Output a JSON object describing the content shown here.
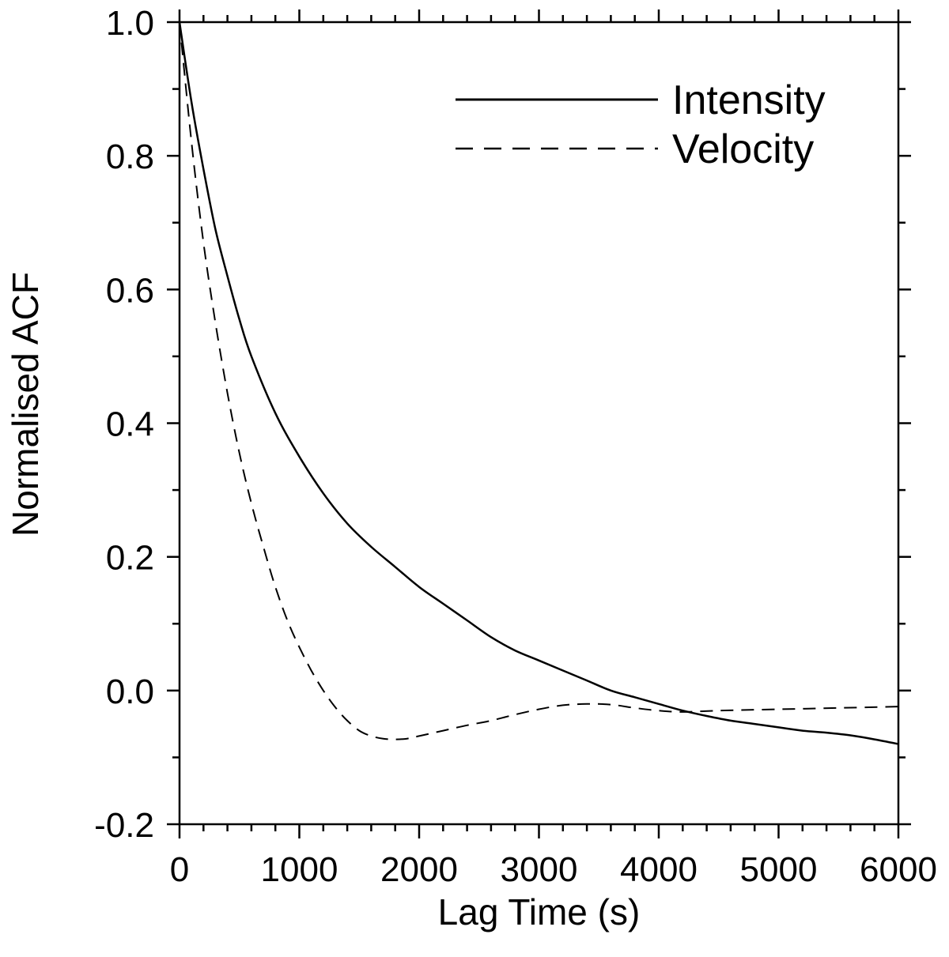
{
  "chart_data": {
    "type": "line",
    "xlabel": "Lag Time (s)",
    "ylabel": "Normalised ACF",
    "xlim": [
      0,
      6000
    ],
    "ylim": [
      -0.2,
      1.0
    ],
    "x_ticks": [
      0,
      1000,
      2000,
      3000,
      4000,
      5000,
      6000
    ],
    "x_tick_labels": [
      "0",
      "1000",
      "2000",
      "3000",
      "4000",
      "5000",
      "6000"
    ],
    "y_ticks": [
      -0.2,
      0.0,
      0.2,
      0.4,
      0.6,
      0.8,
      1.0
    ],
    "y_tick_labels": [
      "-0.2",
      "0.0",
      "0.2",
      "0.4",
      "0.6",
      "0.8",
      "1.0"
    ],
    "x_minor_step": 200,
    "y_minor_step": 0.1,
    "grid": false,
    "legend_position": "top-right",
    "series": [
      {
        "name": "Intensity",
        "style": "solid",
        "color": "#000000",
        "x": [
          0,
          100,
          200,
          300,
          400,
          500,
          600,
          800,
          1000,
          1200,
          1400,
          1600,
          1800,
          2000,
          2200,
          2400,
          2600,
          2800,
          3000,
          3200,
          3400,
          3600,
          3800,
          4000,
          4200,
          4400,
          4600,
          4800,
          5000,
          5200,
          5400,
          5600,
          5800,
          6000
        ],
        "y": [
          1.0,
          0.88,
          0.78,
          0.69,
          0.62,
          0.555,
          0.5,
          0.415,
          0.35,
          0.295,
          0.25,
          0.215,
          0.185,
          0.155,
          0.13,
          0.105,
          0.08,
          0.06,
          0.045,
          0.03,
          0.015,
          0.0,
          -0.01,
          -0.02,
          -0.03,
          -0.038,
          -0.045,
          -0.05,
          -0.055,
          -0.06,
          -0.063,
          -0.067,
          -0.073,
          -0.08
        ]
      },
      {
        "name": "Velocity",
        "style": "dashed",
        "color": "#000000",
        "x": [
          0,
          100,
          200,
          300,
          400,
          500,
          600,
          700,
          800,
          900,
          1000,
          1100,
          1200,
          1300,
          1400,
          1500,
          1600,
          1700,
          1800,
          1900,
          2000,
          2200,
          2400,
          2600,
          2800,
          3000,
          3200,
          3400,
          3600,
          3800,
          4000,
          4200,
          4500,
          5000,
          5500,
          6000
        ],
        "y": [
          1.0,
          0.82,
          0.67,
          0.55,
          0.445,
          0.355,
          0.28,
          0.215,
          0.155,
          0.105,
          0.065,
          0.03,
          0.0,
          -0.025,
          -0.045,
          -0.06,
          -0.068,
          -0.072,
          -0.073,
          -0.072,
          -0.068,
          -0.06,
          -0.052,
          -0.045,
          -0.036,
          -0.028,
          -0.022,
          -0.02,
          -0.021,
          -0.026,
          -0.03,
          -0.032,
          -0.03,
          -0.028,
          -0.026,
          -0.024
        ]
      }
    ]
  }
}
